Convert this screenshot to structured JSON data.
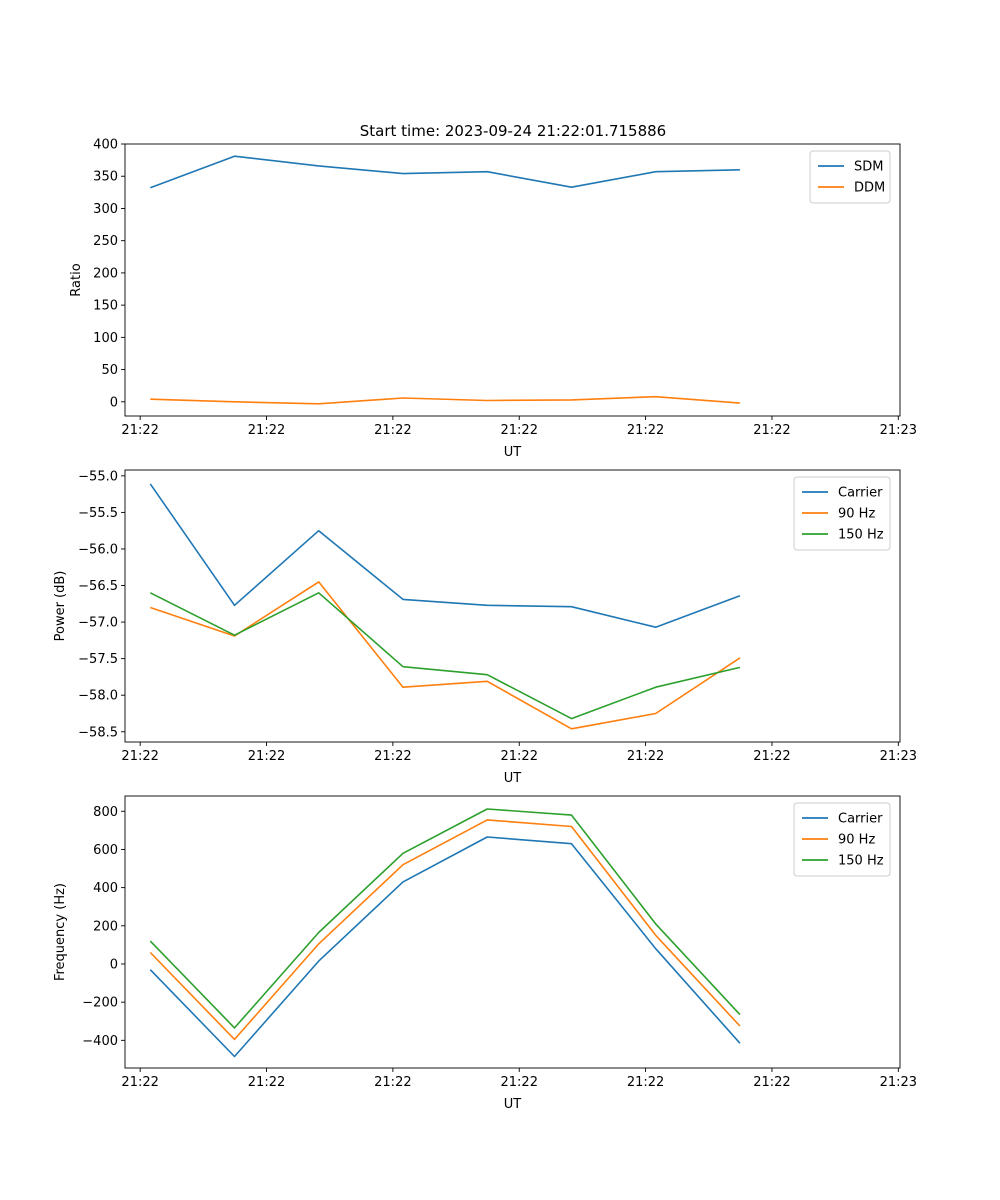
{
  "figure": {
    "title": "Start time: 2023-09-24 21:22:01.715886"
  },
  "chart_data": [
    {
      "type": "line",
      "title": "Start time: 2023-09-24 21:22:01.715886",
      "xlabel": "UT",
      "ylabel": "Ratio",
      "x_ticks": [
        -0.12,
        1.38,
        2.88,
        4.38,
        5.88,
        7.38,
        8.88
      ],
      "x_tick_labels": [
        "21:22",
        "21:22",
        "21:22",
        "21:22",
        "21:22",
        "21:22",
        "21:23"
      ],
      "xlim": [
        -0.3,
        8.9
      ],
      "ylim": [
        -22,
        400
      ],
      "y_ticks": [
        0,
        50,
        100,
        150,
        200,
        250,
        300,
        350,
        400
      ],
      "y_tick_labels": [
        "0",
        "50",
        "100",
        "150",
        "200",
        "250",
        "300",
        "350",
        "400"
      ],
      "legend": "top-right",
      "x": [
        0,
        1,
        2,
        3,
        4,
        5,
        6,
        7
      ],
      "series": [
        {
          "name": "SDM",
          "color": "#1f77b4",
          "values": [
            332,
            381,
            366,
            354,
            357,
            333,
            357,
            360
          ]
        },
        {
          "name": "DDM",
          "color": "#ff7f0e",
          "values": [
            4,
            0,
            -3,
            6,
            2,
            3,
            8,
            -2
          ]
        }
      ]
    },
    {
      "type": "line",
      "xlabel": "UT",
      "ylabel": "Power (dB)",
      "x_ticks": [
        -0.12,
        1.38,
        2.88,
        4.38,
        5.88,
        7.38,
        8.88
      ],
      "x_tick_labels": [
        "21:22",
        "21:22",
        "21:22",
        "21:22",
        "21:22",
        "21:22",
        "21:23"
      ],
      "xlim": [
        -0.3,
        8.9
      ],
      "ylim": [
        -58.64,
        -54.92
      ],
      "y_ticks": [
        -55.0,
        -55.5,
        -56.0,
        -56.5,
        -57.0,
        -57.5,
        -58.0,
        -58.5
      ],
      "y_tick_labels": [
        "−55.0",
        "−55.5",
        "−56.0",
        "−56.5",
        "−57.0",
        "−57.5",
        "−58.0",
        "−58.5"
      ],
      "legend": "top-right",
      "x": [
        0,
        1,
        2,
        3,
        4,
        5,
        6,
        7
      ],
      "series": [
        {
          "name": "Carrier",
          "color": "#1f77b4",
          "values": [
            -55.11,
            -56.77,
            -55.75,
            -56.69,
            -56.77,
            -56.79,
            -57.07,
            -56.64
          ]
        },
        {
          "name": "90 Hz",
          "color": "#ff7f0e",
          "values": [
            -56.8,
            -57.19,
            -56.45,
            -57.89,
            -57.81,
            -58.46,
            -58.25,
            -57.49
          ]
        },
        {
          "name": "150 Hz",
          "color": "#2ca02c",
          "values": [
            -56.6,
            -57.18,
            -56.6,
            -57.61,
            -57.72,
            -58.32,
            -57.89,
            -57.62
          ]
        }
      ]
    },
    {
      "type": "line",
      "xlabel": "UT",
      "ylabel": "Frequency (Hz)",
      "x_ticks": [
        -0.12,
        1.38,
        2.88,
        4.38,
        5.88,
        7.38,
        8.88
      ],
      "x_tick_labels": [
        "21:22",
        "21:22",
        "21:22",
        "21:22",
        "21:22",
        "21:22",
        "21:23"
      ],
      "xlim": [
        -0.3,
        8.9
      ],
      "ylim": [
        -545,
        880
      ],
      "y_ticks": [
        -400,
        -200,
        0,
        200,
        400,
        600,
        800
      ],
      "y_tick_labels": [
        "−400",
        "−200",
        "0",
        "200",
        "400",
        "600",
        "800"
      ],
      "legend": "top-right",
      "x": [
        0,
        1,
        2,
        3,
        4,
        5,
        6,
        7
      ],
      "series": [
        {
          "name": "Carrier",
          "color": "#1f77b4",
          "values": [
            -30,
            -485,
            15,
            430,
            665,
            630,
            80,
            -415
          ]
        },
        {
          "name": "90 Hz",
          "color": "#ff7f0e",
          "values": [
            60,
            -395,
            105,
            520,
            755,
            720,
            150,
            -325
          ]
        },
        {
          "name": "150 Hz",
          "color": "#2ca02c",
          "values": [
            120,
            -335,
            165,
            580,
            812,
            780,
            210,
            -265
          ]
        }
      ]
    }
  ]
}
